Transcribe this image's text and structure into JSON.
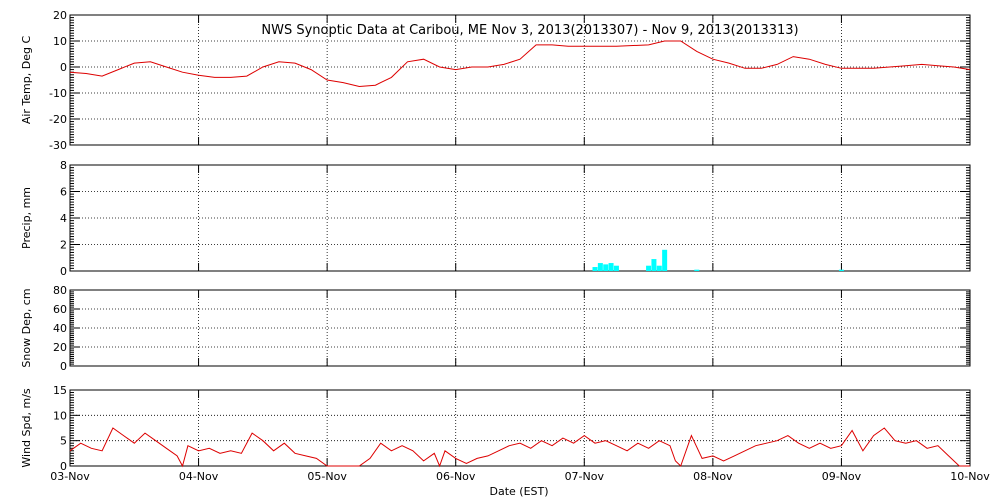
{
  "chart_data": {
    "title": "NWS Synoptic Data at Caribou, ME   Nov  3, 2013(2013307) - Nov  9, 2013(2013313)",
    "xlabel": "Date (EST)",
    "x_ticks": [
      "03-Nov",
      "04-Nov",
      "05-Nov",
      "06-Nov",
      "07-Nov",
      "08-Nov",
      "09-Nov",
      "10-Nov"
    ],
    "x_range": [
      "2013-11-03",
      "2013-11-10"
    ],
    "grid": true,
    "panels": [
      {
        "id": "temp",
        "type": "line",
        "ylabel": "Air Temp, Deg C",
        "ylim": [
          -30,
          20
        ],
        "yticks": [
          "-30",
          "-20",
          "-10",
          "0",
          "10",
          "20"
        ],
        "points": [
          [
            "2013-11-03T00:00",
            -2
          ],
          [
            "2013-11-03T03:00",
            -2.5
          ],
          [
            "2013-11-03T06:00",
            -3.5
          ],
          [
            "2013-11-03T09:00",
            -1
          ],
          [
            "2013-11-03T12:00",
            1.5
          ],
          [
            "2013-11-03T15:00",
            2
          ],
          [
            "2013-11-03T18:00",
            0
          ],
          [
            "2013-11-03T21:00",
            -2
          ],
          [
            "2013-11-04T00:00",
            -3.2
          ],
          [
            "2013-11-04T03:00",
            -4
          ],
          [
            "2013-11-04T06:00",
            -4
          ],
          [
            "2013-11-04T09:00",
            -3.5
          ],
          [
            "2013-11-04T12:00",
            0
          ],
          [
            "2013-11-04T15:00",
            2
          ],
          [
            "2013-11-04T18:00",
            1.5
          ],
          [
            "2013-11-04T21:00",
            -1
          ],
          [
            "2013-11-05T00:00",
            -5
          ],
          [
            "2013-11-05T03:00",
            -6
          ],
          [
            "2013-11-05T06:00",
            -7.5
          ],
          [
            "2013-11-05T09:00",
            -7
          ],
          [
            "2013-11-05T12:00",
            -4
          ],
          [
            "2013-11-05T15:00",
            2
          ],
          [
            "2013-11-05T18:00",
            3
          ],
          [
            "2013-11-05T21:00",
            0
          ],
          [
            "2013-11-06T00:00",
            -1
          ],
          [
            "2013-11-06T03:00",
            0
          ],
          [
            "2013-11-06T06:00",
            0
          ],
          [
            "2013-11-06T09:00",
            1
          ],
          [
            "2013-11-06T12:00",
            3
          ],
          [
            "2013-11-06T15:00",
            8.5
          ],
          [
            "2013-11-06T18:00",
            8.5
          ],
          [
            "2013-11-06T21:00",
            8
          ],
          [
            "2013-11-07T00:00",
            8
          ],
          [
            "2013-11-07T06:00",
            8
          ],
          [
            "2013-11-07T12:00",
            8.5
          ],
          [
            "2013-11-07T15:00",
            10
          ],
          [
            "2013-11-07T18:00",
            10
          ],
          [
            "2013-11-07T21:00",
            6
          ],
          [
            "2013-11-08T00:00",
            3
          ],
          [
            "2013-11-08T03:00",
            1.5
          ],
          [
            "2013-11-08T06:00",
            -0.5
          ],
          [
            "2013-11-08T09:00",
            -0.5
          ],
          [
            "2013-11-08T12:00",
            1
          ],
          [
            "2013-11-08T15:00",
            4
          ],
          [
            "2013-11-08T18:00",
            3
          ],
          [
            "2013-11-08T21:00",
            1
          ],
          [
            "2013-11-09T00:00",
            -0.5
          ],
          [
            "2013-11-09T06:00",
            -0.5
          ],
          [
            "2013-11-09T09:00",
            0
          ],
          [
            "2013-11-09T12:00",
            0.5
          ],
          [
            "2013-11-09T15:00",
            1
          ],
          [
            "2013-11-09T18:00",
            0.5
          ],
          [
            "2013-11-09T21:00",
            0
          ],
          [
            "2013-11-10T00:00",
            -1
          ]
        ]
      },
      {
        "id": "precip",
        "type": "bar",
        "ylabel": "Precip, mm",
        "ylim": [
          0,
          8
        ],
        "yticks": [
          "0",
          "2",
          "4",
          "6",
          "8"
        ],
        "bars": [
          [
            "2013-11-07T02:00",
            0.3
          ],
          [
            "2013-11-07T03:00",
            0.6
          ],
          [
            "2013-11-07T04:00",
            0.5
          ],
          [
            "2013-11-07T05:00",
            0.6
          ],
          [
            "2013-11-07T06:00",
            0.4
          ],
          [
            "2013-11-07T12:00",
            0.4
          ],
          [
            "2013-11-07T13:00",
            0.9
          ],
          [
            "2013-11-07T14:00",
            0.4
          ],
          [
            "2013-11-07T15:00",
            1.6
          ],
          [
            "2013-11-07T21:00",
            0.1
          ],
          [
            "2013-11-09T00:00",
            0.1
          ]
        ]
      },
      {
        "id": "snow",
        "type": "line",
        "ylabel": "Snow Dep, cm",
        "ylim": [
          0,
          80
        ],
        "yticks": [
          "0",
          "20",
          "40",
          "60",
          "80"
        ],
        "points": []
      },
      {
        "id": "wind",
        "type": "line",
        "ylabel": "Wind Spd, m/s",
        "ylim": [
          0,
          15
        ],
        "yticks": [
          "0",
          "5",
          "10",
          "15"
        ],
        "points": [
          [
            "2013-11-03T00:00",
            3
          ],
          [
            "2013-11-03T02:00",
            4.5
          ],
          [
            "2013-11-03T04:00",
            3.5
          ],
          [
            "2013-11-03T06:00",
            3
          ],
          [
            "2013-11-03T08:00",
            7.5
          ],
          [
            "2013-11-03T10:00",
            6
          ],
          [
            "2013-11-03T12:00",
            4.5
          ],
          [
            "2013-11-03T14:00",
            6.5
          ],
          [
            "2013-11-03T16:00",
            5
          ],
          [
            "2013-11-03T18:00",
            3.5
          ],
          [
            "2013-11-03T20:00",
            2
          ],
          [
            "2013-11-03T21:00",
            0
          ],
          [
            "2013-11-03T22:00",
            4
          ],
          [
            "2013-11-04T00:00",
            3
          ],
          [
            "2013-11-04T02:00",
            3.5
          ],
          [
            "2013-11-04T04:00",
            2.5
          ],
          [
            "2013-11-04T06:00",
            3
          ],
          [
            "2013-11-04T08:00",
            2.5
          ],
          [
            "2013-11-04T10:00",
            6.5
          ],
          [
            "2013-11-04T12:00",
            5
          ],
          [
            "2013-11-04T14:00",
            3
          ],
          [
            "2013-11-04T16:00",
            4.5
          ],
          [
            "2013-11-04T18:00",
            2.5
          ],
          [
            "2013-11-04T20:00",
            2
          ],
          [
            "2013-11-04T22:00",
            1.5
          ],
          [
            "2013-11-05T00:00",
            0
          ],
          [
            "2013-11-05T02:00",
            0
          ],
          [
            "2013-11-05T04:00",
            0
          ],
          [
            "2013-11-05T06:00",
            0
          ],
          [
            "2013-11-05T08:00",
            1.5
          ],
          [
            "2013-11-05T10:00",
            4.5
          ],
          [
            "2013-11-05T12:00",
            3
          ],
          [
            "2013-11-05T14:00",
            4
          ],
          [
            "2013-11-05T16:00",
            3
          ],
          [
            "2013-11-05T18:00",
            1
          ],
          [
            "2013-11-05T20:00",
            2.5
          ],
          [
            "2013-11-05T21:00",
            0
          ],
          [
            "2013-11-05T22:00",
            3
          ],
          [
            "2013-11-06T00:00",
            1.5
          ],
          [
            "2013-11-06T02:00",
            0.5
          ],
          [
            "2013-11-06T04:00",
            1.5
          ],
          [
            "2013-11-06T06:00",
            2
          ],
          [
            "2013-11-06T08:00",
            3
          ],
          [
            "2013-11-06T10:00",
            4
          ],
          [
            "2013-11-06T12:00",
            4.5
          ],
          [
            "2013-11-06T14:00",
            3.5
          ],
          [
            "2013-11-06T16:00",
            5
          ],
          [
            "2013-11-06T18:00",
            4
          ],
          [
            "2013-11-06T20:00",
            5.5
          ],
          [
            "2013-11-06T22:00",
            4.5
          ],
          [
            "2013-11-07T00:00",
            6
          ],
          [
            "2013-11-07T02:00",
            4.5
          ],
          [
            "2013-11-07T04:00",
            5
          ],
          [
            "2013-11-07T06:00",
            4
          ],
          [
            "2013-11-07T08:00",
            3
          ],
          [
            "2013-11-07T10:00",
            4.5
          ],
          [
            "2013-11-07T12:00",
            3.5
          ],
          [
            "2013-11-07T14:00",
            5
          ],
          [
            "2013-11-07T16:00",
            4
          ],
          [
            "2013-11-07T17:00",
            1
          ],
          [
            "2013-11-07T18:00",
            0
          ],
          [
            "2013-11-07T20:00",
            6
          ],
          [
            "2013-11-07T22:00",
            1.5
          ],
          [
            "2013-11-08T00:00",
            2
          ],
          [
            "2013-11-08T02:00",
            1
          ],
          [
            "2013-11-08T04:00",
            2
          ],
          [
            "2013-11-08T06:00",
            3
          ],
          [
            "2013-11-08T08:00",
            4
          ],
          [
            "2013-11-08T10:00",
            4.5
          ],
          [
            "2013-11-08T12:00",
            5
          ],
          [
            "2013-11-08T14:00",
            6
          ],
          [
            "2013-11-08T16:00",
            4.5
          ],
          [
            "2013-11-08T18:00",
            3.5
          ],
          [
            "2013-11-08T20:00",
            4.5
          ],
          [
            "2013-11-08T22:00",
            3.5
          ],
          [
            "2013-11-09T00:00",
            4
          ],
          [
            "2013-11-09T02:00",
            7
          ],
          [
            "2013-11-09T04:00",
            3
          ],
          [
            "2013-11-09T06:00",
            6
          ],
          [
            "2013-11-09T08:00",
            7.5
          ],
          [
            "2013-11-09T10:00",
            5
          ],
          [
            "2013-11-09T12:00",
            4.5
          ],
          [
            "2013-11-09T14:00",
            5
          ],
          [
            "2013-11-09T16:00",
            3.5
          ],
          [
            "2013-11-09T18:00",
            4
          ],
          [
            "2013-11-09T20:00",
            2
          ],
          [
            "2013-11-09T22:00",
            0
          ],
          [
            "2013-11-10T00:00",
            0
          ]
        ]
      }
    ]
  }
}
